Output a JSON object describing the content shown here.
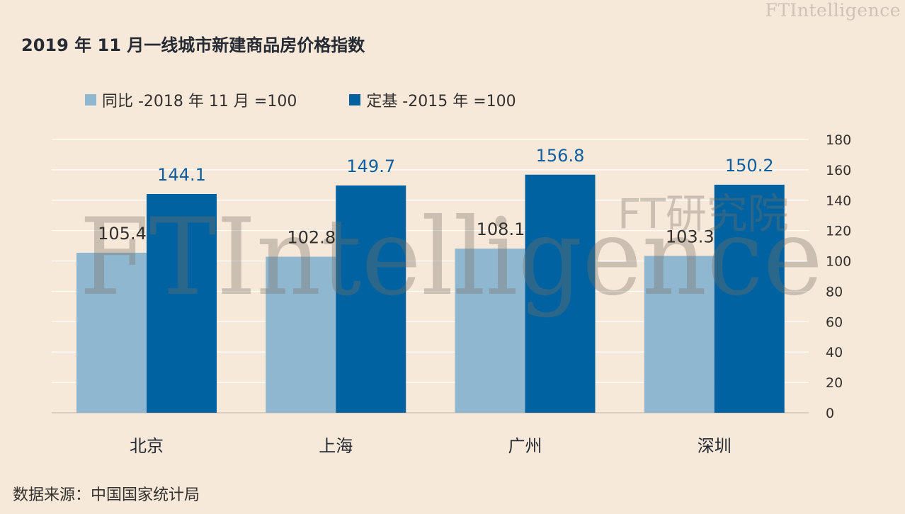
{
  "brand": {
    "text": "FTIntelligence",
    "sub": "FT研究院"
  },
  "watermark": {
    "text": "FTIntelligence",
    "sub": "FT研究院"
  },
  "colors": {
    "background": "#f6e9da",
    "series_light": "#8fb7cf",
    "series_dark": "#0062a0",
    "label_light": "#33302e",
    "label_dark": "#0d5fa0",
    "grid": "#ffffff"
  },
  "title": "2019 年 11 月一线城市新建商品房价格指数",
  "source": "数据来源：中国国家统计局",
  "chart_data": {
    "type": "bar",
    "title": "2019 年 11 月一线城市新建商品房价格指数",
    "categories": [
      "北京",
      "上海",
      "广州",
      "深圳"
    ],
    "series": [
      {
        "name": "同比 -2018 年 11 月 =100",
        "values": [
          105.4,
          102.8,
          108.1,
          103.3
        ],
        "color": "#8fb7cf"
      },
      {
        "name": "定基 -2015 年 =100",
        "values": [
          144.1,
          149.7,
          156.8,
          150.2
        ],
        "color": "#0062a0"
      }
    ],
    "ylim": [
      0,
      180
    ],
    "yticks": [
      0,
      20,
      40,
      60,
      80,
      100,
      120,
      140,
      160,
      180
    ],
    "yaxis_position": "right",
    "grid": true,
    "legend_position": "top-left",
    "data_labels": true
  }
}
